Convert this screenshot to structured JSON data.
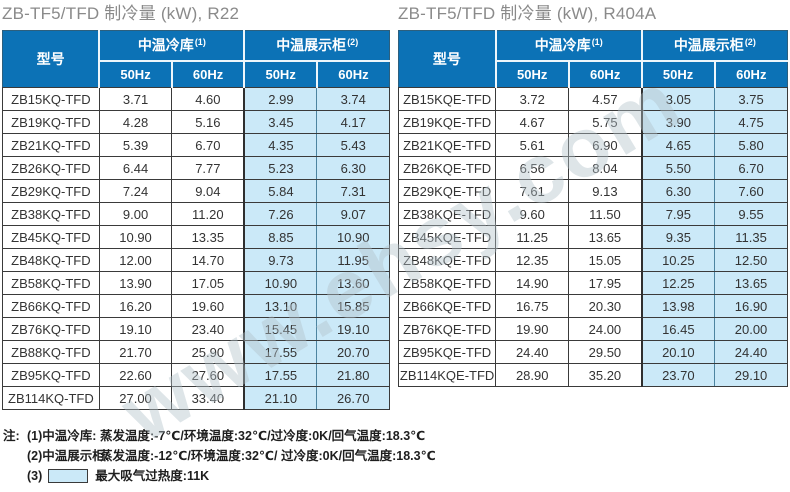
{
  "watermark": "www.ehsy.com",
  "colors": {
    "header_blue": "#0c72b6",
    "highlight_cell_blue": "#cbe9f8",
    "title_gray": "#8a8a8a",
    "border_dark": "#3a3a3a",
    "watermark_gray": "#b3c2ca"
  },
  "tables": [
    {
      "title": "ZB-TF5/TFD 制冷量 (kW), R22",
      "refrigerant": "R22",
      "col_model": "型号",
      "group1": {
        "label": "中温冷库",
        "sup": "(1)"
      },
      "group2": {
        "label": "中温展示柜",
        "sup": "(2)"
      },
      "hz": [
        "50Hz",
        "60Hz",
        "50Hz",
        "60Hz"
      ],
      "rows": [
        [
          "ZB15KQ-TFD",
          "3.71",
          "4.60",
          "2.99",
          "3.74"
        ],
        [
          "ZB19KQ-TFD",
          "4.28",
          "5.16",
          "3.45",
          "4.17"
        ],
        [
          "ZB21KQ-TFD",
          "5.39",
          "6.70",
          "4.35",
          "5.43"
        ],
        [
          "ZB26KQ-TFD",
          "6.44",
          "7.77",
          "5.23",
          "6.30"
        ],
        [
          "ZB29KQ-TFD",
          "7.24",
          "9.04",
          "5.84",
          "7.31"
        ],
        [
          "ZB38KQ-TFD",
          "9.00",
          "11.20",
          "7.26",
          "9.07"
        ],
        [
          "ZB45KQ-TFD",
          "10.90",
          "13.35",
          "8.85",
          "10.90"
        ],
        [
          "ZB48KQ-TFD",
          "12.00",
          "14.70",
          "9.73",
          "11.95"
        ],
        [
          "ZB58KQ-TFD",
          "13.90",
          "17.05",
          "10.90",
          "13.60"
        ],
        [
          "ZB66KQ-TFD",
          "16.20",
          "19.60",
          "13.10",
          "15.85"
        ],
        [
          "ZB76KQ-TFD",
          "19.10",
          "23.40",
          "15.45",
          "19.10"
        ],
        [
          "ZB88KQ-TFD",
          "21.70",
          "25.90",
          "17.55",
          "20.70"
        ],
        [
          "ZB95KQ-TFD",
          "22.60",
          "27.60",
          "17.55",
          "21.80"
        ],
        [
          "ZB114KQ-TFD",
          "27.00",
          "33.40",
          "21.10",
          "26.70"
        ]
      ]
    },
    {
      "title": "ZB-TF5/TFD 制冷量 (kW), R404A",
      "refrigerant": "R404A",
      "col_model": "型号",
      "group1": {
        "label": "中温冷库",
        "sup": "(1)"
      },
      "group2": {
        "label": "中温展示柜",
        "sup": "(2)"
      },
      "hz": [
        "50Hz",
        "60Hz",
        "50Hz",
        "60Hz"
      ],
      "rows": [
        [
          "ZB15KQE-TFD",
          "3.72",
          "4.57",
          "3.05",
          "3.75"
        ],
        [
          "ZB19KQE-TFD",
          "4.67",
          "5.75",
          "3.90",
          "4.75"
        ],
        [
          "ZB21KQE-TFD",
          "5.61",
          "6.90",
          "4.65",
          "5.80"
        ],
        [
          "ZB26KQE-TFD",
          "6.56",
          "8.04",
          "5.50",
          "6.70"
        ],
        [
          "ZB29KQE-TFD",
          "7.61",
          "9.13",
          "6.30",
          "7.60"
        ],
        [
          "ZB38KQE-TFD",
          "9.60",
          "11.50",
          "7.95",
          "9.55"
        ],
        [
          "ZB45KQE-TFD",
          "11.25",
          "13.65",
          "9.35",
          "11.35"
        ],
        [
          "ZB48KQE-TFD",
          "12.35",
          "15.05",
          "10.25",
          "12.50"
        ],
        [
          "ZB58KQE-TFD",
          "14.90",
          "17.95",
          "12.25",
          "13.65"
        ],
        [
          "ZB66KQE-TFD",
          "16.75",
          "20.30",
          "13.98",
          "16.90"
        ],
        [
          "ZB76KQE-TFD",
          "19.90",
          "24.00",
          "16.45",
          "20.00"
        ],
        [
          "ZB95KQE-TFD",
          "24.40",
          "29.50",
          "20.10",
          "24.40"
        ],
        [
          "ZB114KQE-TFD",
          "28.90",
          "35.20",
          "23.70",
          "29.10"
        ]
      ]
    }
  ],
  "notes": {
    "label": "注:",
    "line1": {
      "prefix": "(1)中温冷库:",
      "text": "蒸发温度:-7℃/环境温度:32℃/过冷度:0K/回气温度:18.3℃"
    },
    "line2": {
      "prefix": "(2)中温展示柜:",
      "text": "蒸发温度:-12℃/环境温度:32℃/ 过冷度:0K/回气温度:18.3℃"
    },
    "line3": {
      "prefix": "(3)",
      "swatch": "light-blue-highlight",
      "text": "最大吸气过热度:11K"
    }
  }
}
